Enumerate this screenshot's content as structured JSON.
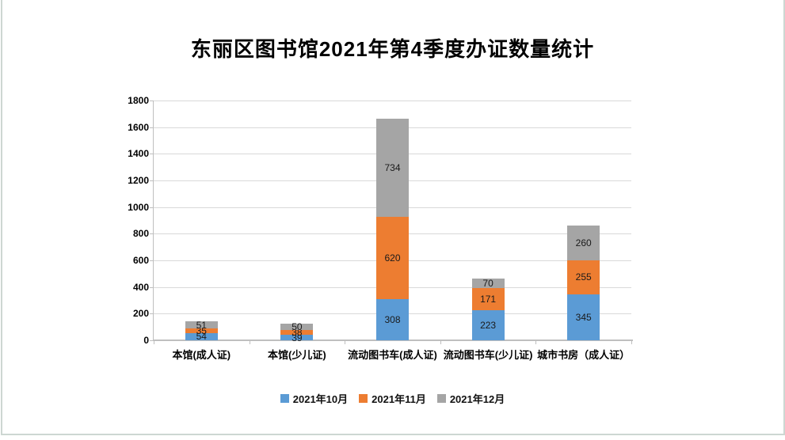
{
  "page": {
    "title": "东丽区图书馆2021年第4季度办证数量统计"
  },
  "chart_data": {
    "type": "bar",
    "stacked": true,
    "title": "东丽区图书馆2021年第4季度办证数量统计",
    "categories": [
      "本馆(成人证)",
      "本馆(少儿证)",
      "流动图书车(成人证)",
      "流动图书车(少儿证)",
      "城市书房（成人证）"
    ],
    "series": [
      {
        "name": "2021年10月",
        "color": "#5B9BD5",
        "values": [
          54,
          39,
          308,
          223,
          345
        ]
      },
      {
        "name": "2021年11月",
        "color": "#ED7D31",
        "values": [
          35,
          38,
          620,
          171,
          255
        ]
      },
      {
        "name": "2021年12月",
        "color": "#A5A5A5",
        "values": [
          51,
          50,
          734,
          70,
          260
        ]
      }
    ],
    "totals": [
      140,
      127,
      1662,
      464,
      860
    ],
    "xlabel": "",
    "ylabel": "",
    "ylim": [
      0,
      1800
    ],
    "yticks": [
      0,
      200,
      400,
      600,
      800,
      1000,
      1200,
      1400,
      1600,
      1800
    ],
    "grid": true,
    "data_labels": true,
    "legend_position": "bottom"
  },
  "style": {
    "gridline_color": "#D9D9D9",
    "axis_color": "#BFBFBF",
    "frame_color": "#CDD7D2",
    "text_color": "#000000"
  }
}
